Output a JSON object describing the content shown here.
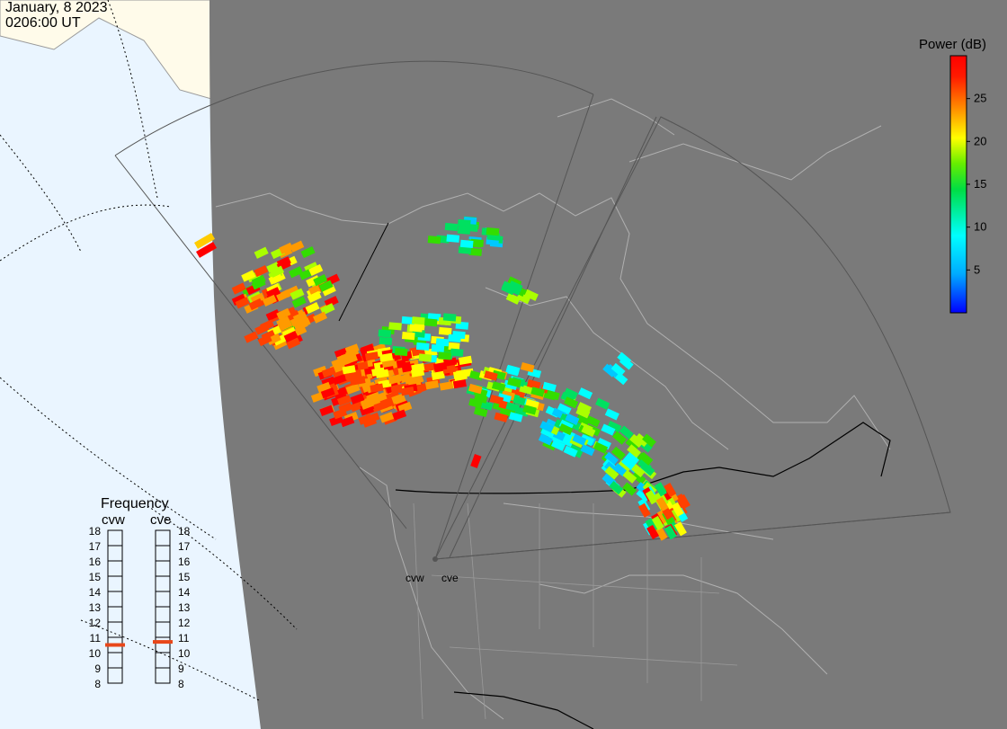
{
  "header": {
    "date": "January, 8 2023",
    "time": "0206:00 UT"
  },
  "colorbar": {
    "title": "Power (dB)",
    "ticks": [
      25,
      20,
      15,
      10,
      5
    ],
    "range": [
      0,
      30
    ],
    "colors": [
      "#0000ff",
      "#00c8ff",
      "#00ffff",
      "#00e060",
      "#33dd00",
      "#aaff00",
      "#ffff00",
      "#ff9a00",
      "#ff4000",
      "#ff0000"
    ]
  },
  "radars": [
    {
      "code": "cvw",
      "selected_frequency_mhz": 10.5
    },
    {
      "code": "cve",
      "selected_frequency_mhz": 10.7
    }
  ],
  "frequency_panel": {
    "title": "Frequency",
    "scale": [
      18,
      17,
      16,
      15,
      14,
      13,
      12,
      11,
      10,
      9,
      8
    ]
  },
  "colors": {
    "night": "#7a7a7a",
    "day_ocean": "#eaf5ff",
    "day_land": "#fffbea",
    "coast": "#000000",
    "borders": "#a0a0a0",
    "marker": "#e8471a"
  }
}
